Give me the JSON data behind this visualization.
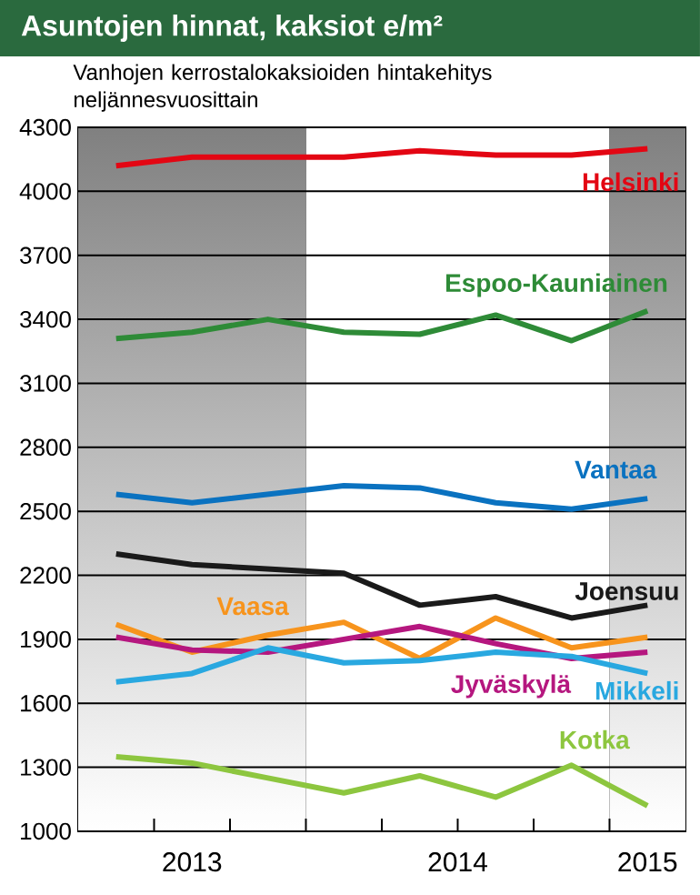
{
  "chart_data": {
    "type": "line",
    "title": "Asuntojen hinnat, kaksiot e/m²",
    "subtitle": "Vanhojen kerrostalokaksioiden hintakehitys neljännesvuosittain",
    "categories": [
      null,
      null,
      null,
      null,
      null,
      null,
      null,
      null
    ],
    "annotations": [
      "2013",
      "2014",
      "2015"
    ],
    "ylim": [
      1000,
      4300
    ],
    "yticks": [
      1000,
      1300,
      1600,
      1900,
      2200,
      2500,
      2800,
      3100,
      3400,
      3700,
      4000,
      4300
    ],
    "grid": "y",
    "legend": false,
    "line_style": "solid",
    "series": [
      {
        "name": "Helsinki",
        "color": "#e30613",
        "values": [
          4120,
          4160,
          4160,
          4160,
          4190,
          4170,
          4170,
          4200
        ]
      },
      {
        "name": "Espoo-Kauniainen",
        "color": "#2e8b37",
        "values": [
          3310,
          3340,
          3400,
          3340,
          3330,
          3420,
          3300,
          3440
        ]
      },
      {
        "name": "Vantaa",
        "color": "#0a72c0",
        "values": [
          2580,
          2540,
          2580,
          2620,
          2610,
          2540,
          2510,
          2560
        ]
      },
      {
        "name": "Joensuu",
        "color": "#1a1a1a",
        "values": [
          2300,
          2250,
          2230,
          2210,
          2060,
          2100,
          2000,
          2060
        ]
      },
      {
        "name": "Vaasa",
        "color": "#f7941d",
        "values": [
          1970,
          1840,
          1920,
          1980,
          1810,
          2000,
          1860,
          1910
        ]
      },
      {
        "name": "Jyväskylä",
        "color": "#b5177f",
        "values": [
          1910,
          1850,
          1840,
          1900,
          1960,
          1880,
          1810,
          1840
        ]
      },
      {
        "name": "Mikkeli",
        "color": "#29a8e0",
        "values": [
          1700,
          1740,
          1860,
          1790,
          1800,
          1840,
          1820,
          1740
        ]
      },
      {
        "name": "Kotka",
        "color": "#8dc63f",
        "values": [
          1350,
          1320,
          1250,
          1180,
          1260,
          1160,
          1310,
          1120
        ]
      }
    ]
  }
}
